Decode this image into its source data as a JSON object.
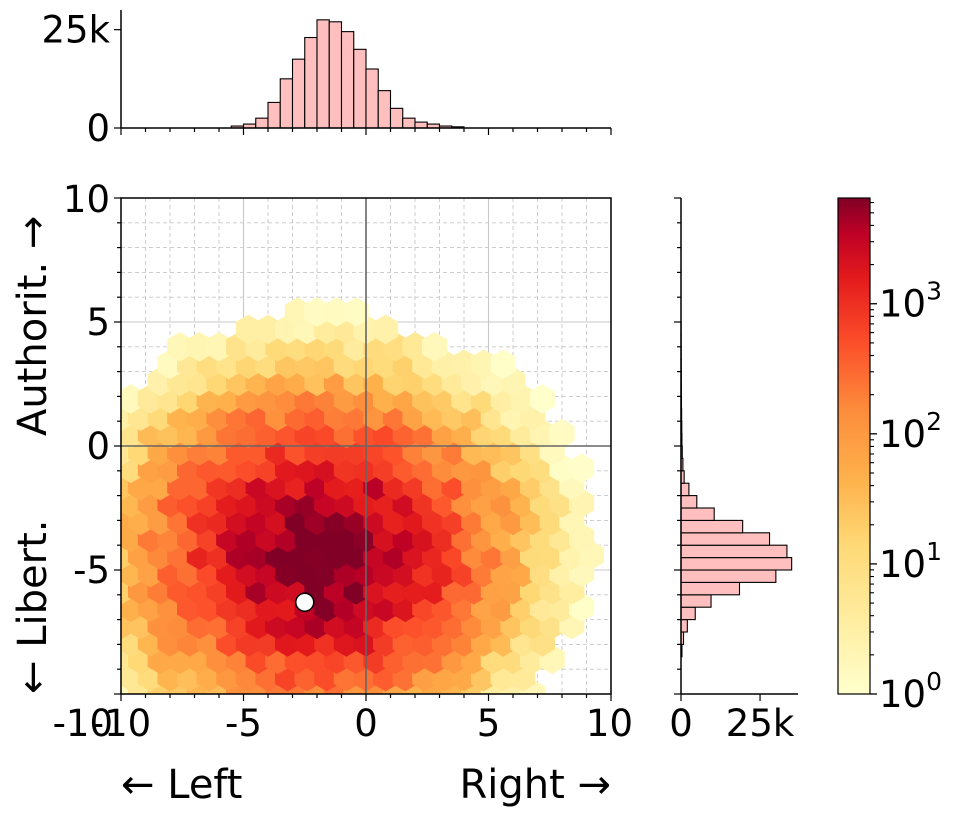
{
  "chart_data": [
    {
      "type": "heatmap",
      "subtype": "hexbin",
      "scale": "log",
      "xlim": [
        -10,
        10
      ],
      "ylim": [
        -10,
        10
      ],
      "x_ticks": [
        "-10",
        "-5",
        "0",
        "5",
        "10"
      ],
      "y_ticks": [
        "-10",
        "-5",
        "0",
        "5",
        "10"
      ],
      "x_tick_values": [
        -10,
        -5,
        0,
        5,
        10
      ],
      "y_tick_values": [
        -10,
        -5,
        0,
        5,
        10
      ],
      "xlabel_left": "← Left",
      "xlabel_right": "Right →",
      "ylabel_bottom": "← Libert.",
      "ylabel_top": "Authorit. →",
      "grid": true,
      "density_center": [
        -1.8,
        -4.2
      ],
      "density_spread": [
        2.3,
        2.0
      ],
      "peak_count": 6500,
      "point": {
        "x": -2.5,
        "y": -6.3
      },
      "colors": {
        "low": "#ffffcc",
        "mid": "#fd8d3c",
        "high": "#800026"
      }
    },
    {
      "type": "bar",
      "orientation": "vertical",
      "position": "top marginal",
      "x": [
        -5.5,
        -5,
        -4.5,
        -4,
        -3.5,
        -3,
        -2.5,
        -2,
        -1.5,
        -1,
        -0.5,
        0,
        0.5,
        1,
        1.5,
        2,
        2.5,
        3,
        3.5
      ],
      "values": [
        500,
        1000,
        2500,
        6500,
        12500,
        17500,
        23000,
        27500,
        27000,
        24500,
        20000,
        15000,
        9500,
        5000,
        2500,
        1500,
        1000,
        500,
        300
      ],
      "y_ticks": [
        "0",
        "25k"
      ],
      "y_tick_values": [
        0,
        25000
      ],
      "ylim": [
        0,
        30000
      ],
      "color": "#ffbfbf"
    },
    {
      "type": "bar",
      "orientation": "horizontal",
      "position": "right marginal",
      "y": [
        -8.5,
        -8,
        -7.5,
        -7,
        -6.5,
        -6,
        -5.5,
        -5,
        -4.5,
        -4,
        -3.5,
        -3,
        -2.5,
        -2,
        -1.5,
        -1,
        -0.5,
        0,
        0.5,
        1,
        1.5,
        2,
        2.5,
        3,
        3.5,
        4,
        4.5
      ],
      "values": [
        300,
        800,
        2000,
        4500,
        9500,
        18500,
        30000,
        35000,
        33500,
        28000,
        19500,
        10500,
        5000,
        2500,
        1000,
        600,
        400,
        300,
        250,
        200,
        150,
        120,
        100,
        80,
        60,
        40,
        30
      ],
      "x_ticks": [
        "0",
        "25k"
      ],
      "x_tick_values": [
        0,
        25000
      ],
      "xlim": [
        0,
        37000
      ],
      "color": "#ffbfbf"
    },
    {
      "type": "colorbar",
      "scale": "log",
      "range": [
        1,
        6500
      ],
      "tick_labels": [
        "10",
        "10",
        "10",
        "10"
      ],
      "tick_exponents": [
        "0",
        "1",
        "2",
        "3"
      ],
      "tick_values": [
        1,
        10,
        100,
        1000
      ],
      "colormap": "YlOrRd"
    }
  ]
}
